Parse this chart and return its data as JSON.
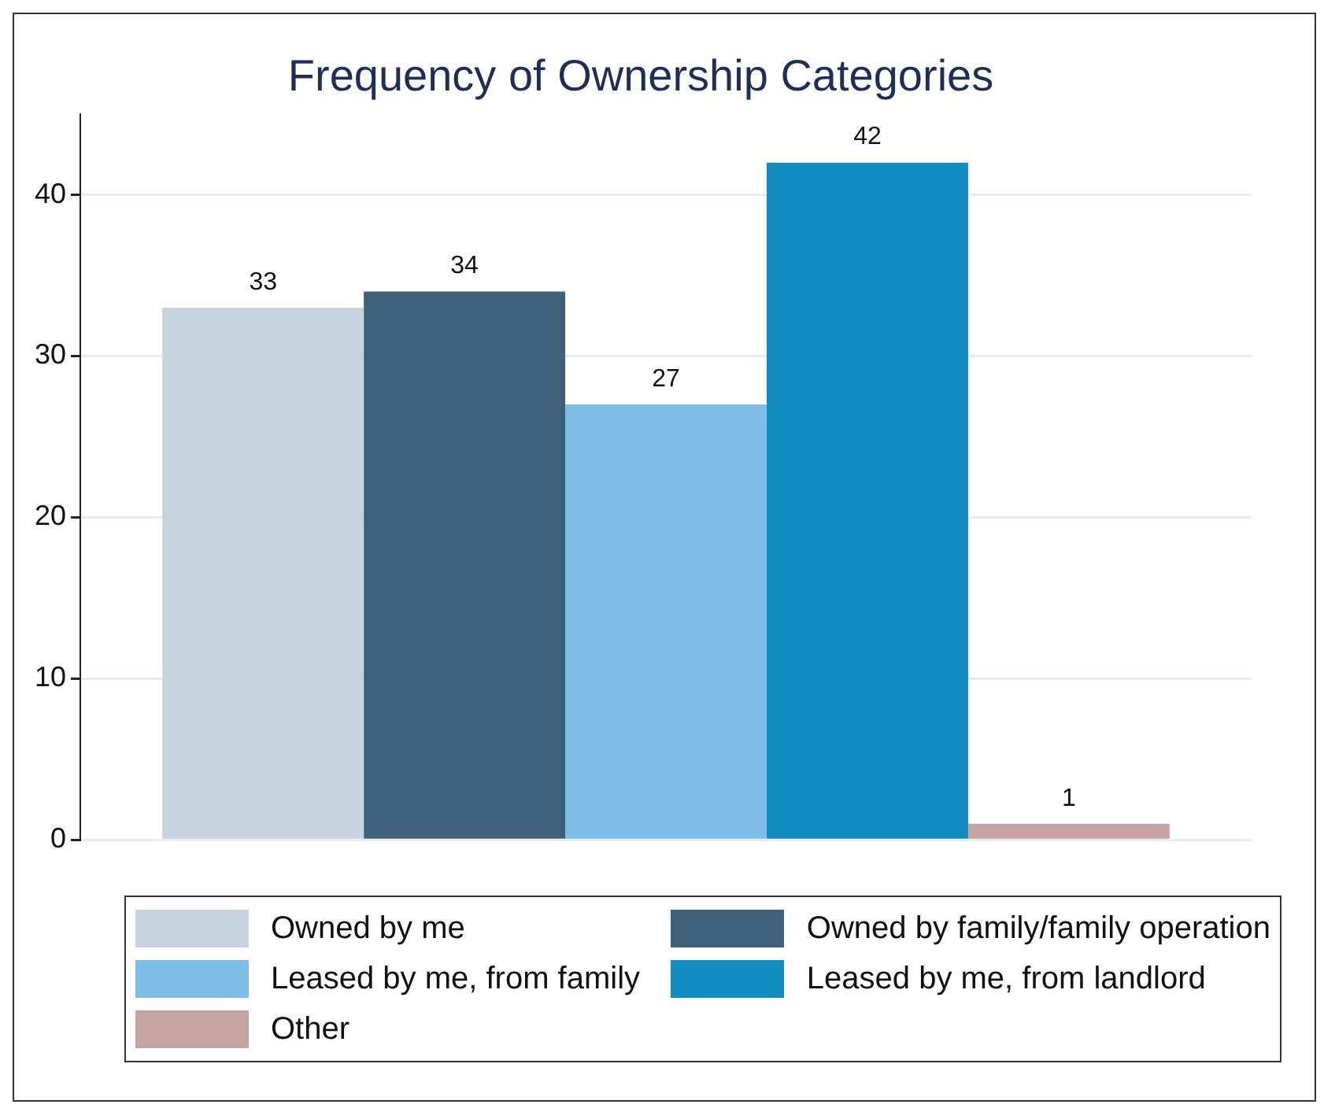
{
  "chart_data": {
    "type": "bar",
    "title": "Frequency of Ownership Categories",
    "categories": [
      null
    ],
    "series": [
      {
        "name": "Owned by me",
        "color": "#c6d3df",
        "values": [
          33
        ]
      },
      {
        "name": "Owned by family/family operation",
        "color": "#3e6079",
        "values": [
          34
        ]
      },
      {
        "name": "Leased by me, from family",
        "color": "#7fbce6",
        "values": [
          27
        ]
      },
      {
        "name": "Leased by me, from landlord",
        "color": "#118bc0",
        "values": [
          42
        ]
      },
      {
        "name": "Other",
        "color": "#c4a3a0",
        "values": [
          1
        ]
      }
    ],
    "ylim": [
      0,
      45
    ],
    "yticks": [
      0,
      10,
      20,
      30,
      40
    ],
    "grid": "y",
    "legend": "bottom",
    "data_labels": true
  }
}
